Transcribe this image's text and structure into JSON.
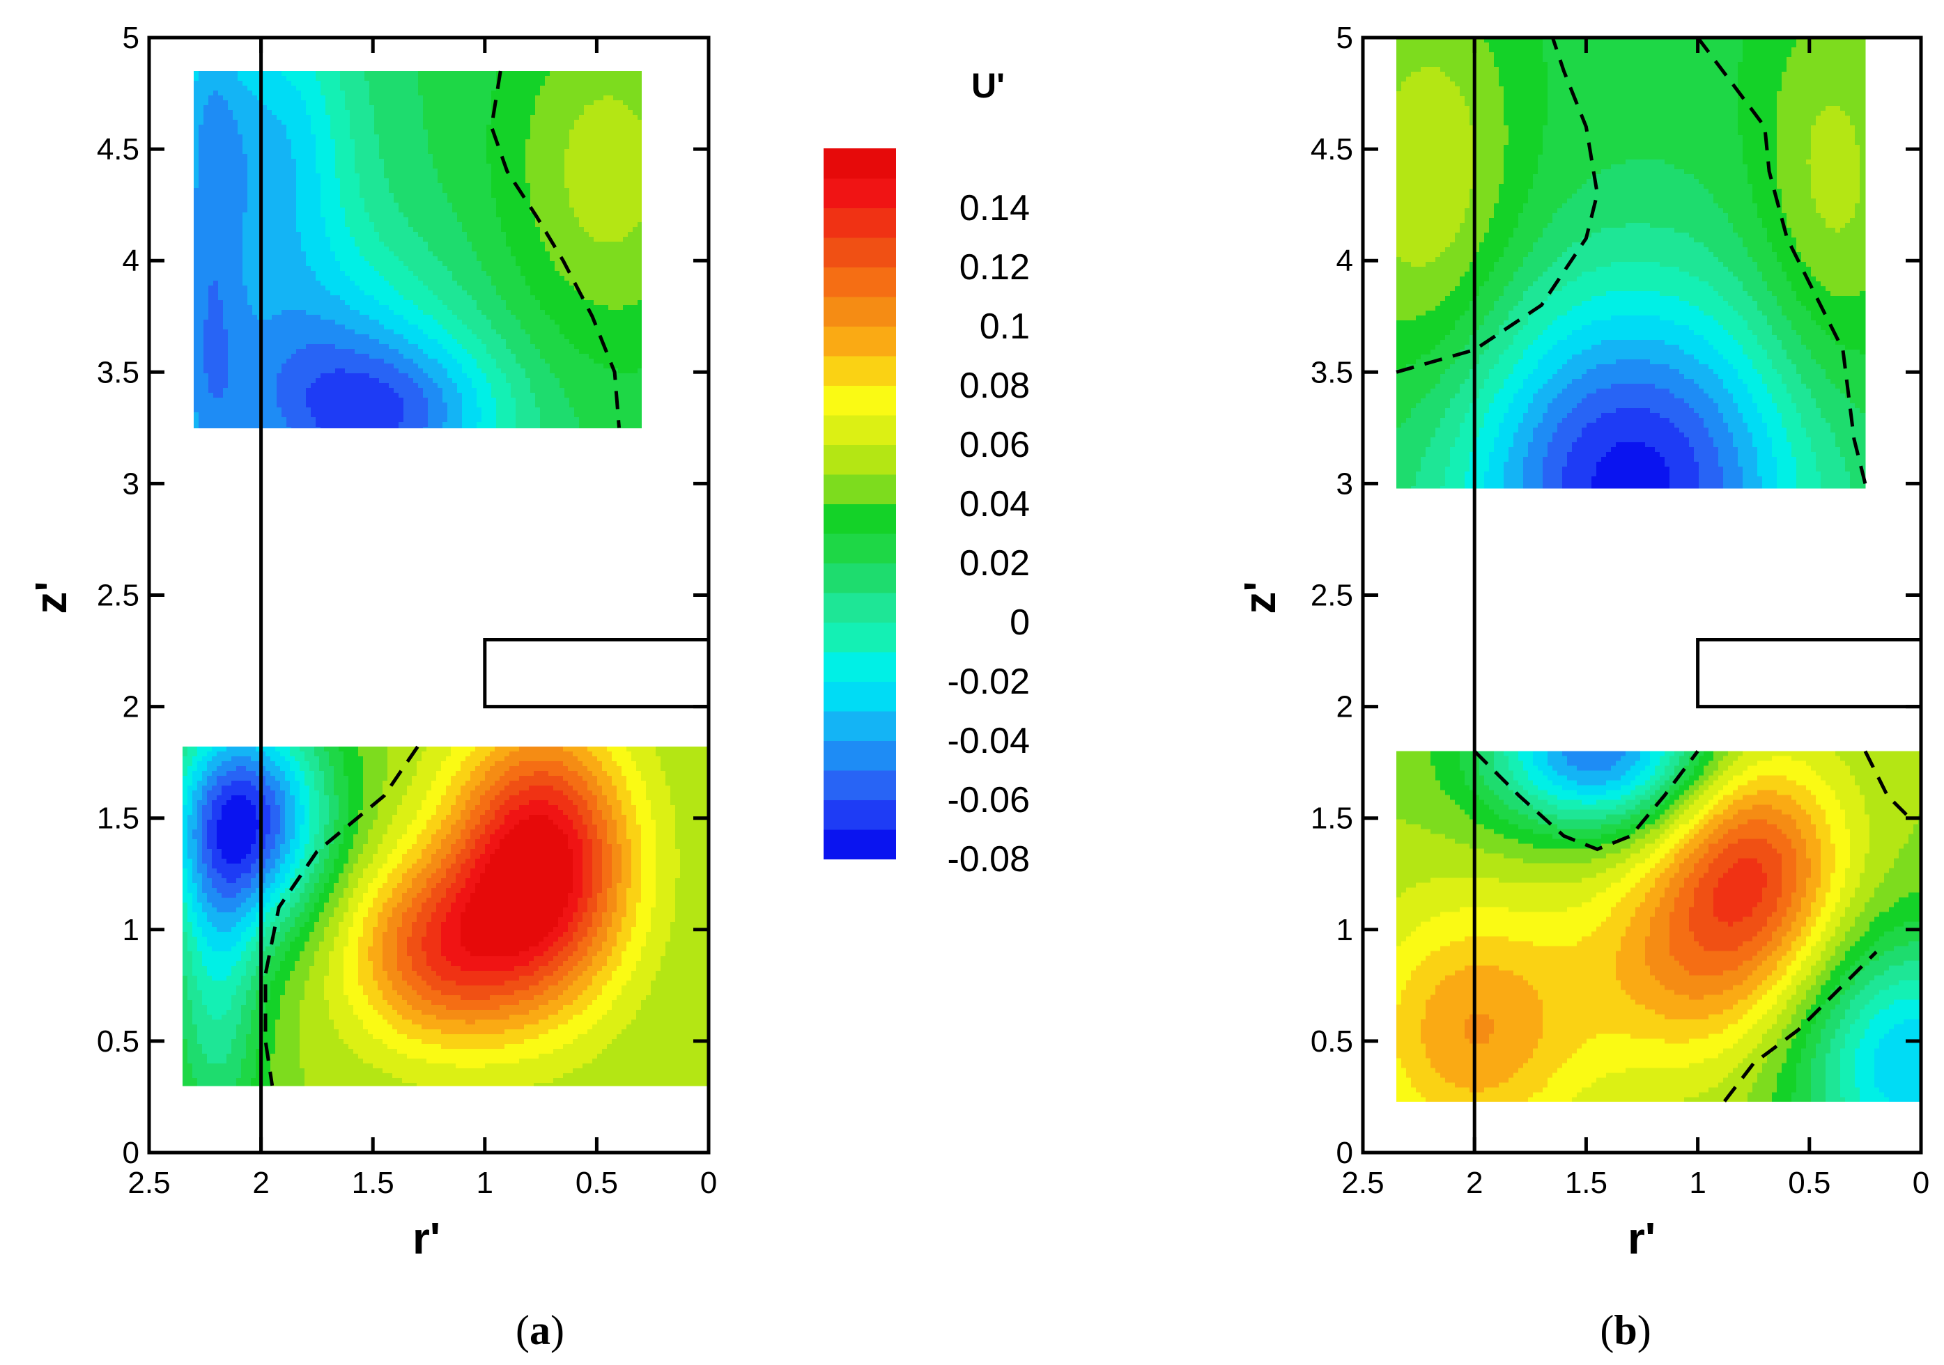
{
  "chart_data": [
    {
      "type": "contour",
      "panel": "a",
      "caption_open": "(",
      "caption_letter": "a",
      "caption_close": ")",
      "xlabel": "r'",
      "ylabel": "z'",
      "xlim": [
        2.5,
        0
      ],
      "ylim": [
        0,
        5
      ],
      "xticks": [
        "2.5",
        "2",
        "1.5",
        "1",
        "0.5",
        "0"
      ],
      "xtick_values": [
        2.5,
        2,
        1.5,
        1,
        0.5,
        0
      ],
      "yticks": [
        "0",
        "0.5",
        "1",
        "1.5",
        "2",
        "2.5",
        "3",
        "3.5",
        "4",
        "4.5",
        "5"
      ],
      "ytick_values": [
        0,
        0.5,
        1,
        1.5,
        2,
        2.5,
        3,
        3.5,
        4,
        4.5,
        5
      ],
      "reference_line_r": 2,
      "obstacle": {
        "r_min": 0,
        "r_max": 1,
        "z_min": 2,
        "z_max": 2.3
      },
      "regions": [
        {
          "name": "upper",
          "r_range": [
            0.3,
            2.3
          ],
          "z_range": [
            3.25,
            4.85
          ],
          "background": 0.02,
          "blobs": [
            {
              "r": 2.25,
              "z": 4.2,
              "sr": 0.12,
              "sz": 1.2,
              "amp": -0.04
            },
            {
              "r": 1.75,
              "z": 3.4,
              "sr": 0.45,
              "sz": 0.45,
              "amp": -0.06
            },
            {
              "r": 1.35,
              "z": 3.3,
              "sr": 0.35,
              "sz": 0.25,
              "amp": -0.04
            },
            {
              "r": 1.95,
              "z": 4.5,
              "sr": 0.25,
              "sz": 0.5,
              "amp": -0.05
            },
            {
              "r": 0.45,
              "z": 4.4,
              "sr": 0.35,
              "sz": 0.6,
              "amp": 0.035
            }
          ],
          "zero_contour": [
            [
              0.93,
              4.85
            ],
            [
              0.97,
              4.6
            ],
            [
              0.9,
              4.4
            ],
            [
              0.77,
              4.2
            ],
            [
              0.65,
              4.0
            ],
            [
              0.52,
              3.75
            ],
            [
              0.42,
              3.5
            ],
            [
              0.4,
              3.25
            ]
          ]
        },
        {
          "name": "lower",
          "r_range": [
            0,
            2.35
          ],
          "z_range": [
            0.3,
            1.82
          ],
          "background": 0.05,
          "blobs": [
            {
              "r": 0.75,
              "z": 1.3,
              "sr": 0.28,
              "sz": 0.42,
              "amp": 0.11
            },
            {
              "r": 1.2,
              "z": 0.9,
              "sr": 0.3,
              "sz": 0.3,
              "amp": 0.07
            },
            {
              "r": 2.05,
              "z": 1.5,
              "sr": 0.25,
              "sz": 0.35,
              "amp": -0.11
            },
            {
              "r": 2.2,
              "z": 0.8,
              "sr": 0.15,
              "sz": 0.6,
              "amp": -0.05
            }
          ],
          "zero_contour": [
            [
              1.3,
              1.82
            ],
            [
              1.45,
              1.6
            ],
            [
              1.75,
              1.35
            ],
            [
              1.92,
              1.1
            ],
            [
              1.98,
              0.8
            ],
            [
              1.98,
              0.5
            ],
            [
              1.95,
              0.3
            ]
          ]
        }
      ]
    },
    {
      "type": "contour",
      "panel": "b",
      "caption_open": "(",
      "caption_letter": "b",
      "caption_close": ")",
      "xlabel": "r'",
      "ylabel": "z'",
      "xlim": [
        2.5,
        0
      ],
      "ylim": [
        0,
        5
      ],
      "xticks": [
        "2.5",
        "2",
        "1.5",
        "1",
        "0.5",
        "0"
      ],
      "xtick_values": [
        2.5,
        2,
        1.5,
        1,
        0.5,
        0
      ],
      "yticks": [
        "0",
        "0.5",
        "1",
        "1.5",
        "2",
        "2.5",
        "3",
        "3.5",
        "4",
        "4.5",
        "5"
      ],
      "ytick_values": [
        0,
        0.5,
        1,
        1.5,
        2,
        2.5,
        3,
        3.5,
        4,
        4.5,
        5
      ],
      "reference_line_r": 2,
      "obstacle": {
        "r_min": 0,
        "r_max": 1,
        "z_min": 2,
        "z_max": 2.3
      },
      "regions": [
        {
          "name": "upper",
          "r_range": [
            0.25,
            2.35
          ],
          "z_range": [
            2.98,
            5.0
          ],
          "background": 0.025,
          "blobs": [
            {
              "r": 1.3,
              "z": 3.0,
              "sr": 0.55,
              "sz": 0.6,
              "amp": -0.1
            },
            {
              "r": 2.2,
              "z": 4.3,
              "sr": 0.3,
              "sz": 0.7,
              "amp": 0.035
            },
            {
              "r": 0.4,
              "z": 4.3,
              "sr": 0.25,
              "sz": 0.7,
              "amp": 0.03
            }
          ],
          "zero_contour_left": [
            [
              2.35,
              3.5
            ],
            [
              2.0,
              3.6
            ],
            [
              1.7,
              3.8
            ],
            [
              1.5,
              4.1
            ],
            [
              1.45,
              4.3
            ],
            [
              1.5,
              4.6
            ],
            [
              1.6,
              4.85
            ],
            [
              1.65,
              5.0
            ]
          ],
          "zero_contour_right": [
            [
              1.0,
              5.0
            ],
            [
              0.85,
              4.8
            ],
            [
              0.7,
              4.6
            ],
            [
              0.68,
              4.4
            ],
            [
              0.6,
              4.1
            ],
            [
              0.5,
              3.9
            ],
            [
              0.35,
              3.6
            ],
            [
              0.3,
              3.2
            ],
            [
              0.25,
              3.0
            ]
          ]
        },
        {
          "name": "lower",
          "r_range": [
            0,
            2.35
          ],
          "z_range": [
            0.23,
            1.8
          ],
          "background": 0.05,
          "blobs": [
            {
              "r": 0.75,
              "z": 1.3,
              "sr": 0.28,
              "sz": 0.35,
              "amp": 0.07
            },
            {
              "r": 1.05,
              "z": 0.85,
              "sr": 0.35,
              "sz": 0.35,
              "amp": 0.045
            },
            {
              "r": 2.0,
              "z": 0.55,
              "sr": 0.35,
              "sz": 0.4,
              "amp": 0.05
            },
            {
              "r": 1.45,
              "z": 1.8,
              "sr": 0.35,
              "sz": 0.25,
              "amp": -0.1
            },
            {
              "r": 0.05,
              "z": 0.4,
              "sr": 0.35,
              "sz": 0.4,
              "amp": -0.08
            }
          ],
          "zero_contour_top": [
            [
              2.0,
              1.8
            ],
            [
              1.8,
              1.6
            ],
            [
              1.6,
              1.42
            ],
            [
              1.45,
              1.36
            ],
            [
              1.3,
              1.42
            ],
            [
              1.15,
              1.6
            ],
            [
              1.0,
              1.8
            ]
          ],
          "zero_contour_right": [
            [
              0.88,
              0.23
            ],
            [
              0.75,
              0.4
            ],
            [
              0.55,
              0.55
            ],
            [
              0.35,
              0.75
            ],
            [
              0.2,
              0.9
            ]
          ],
          "zero_contour_top_right": [
            [
              0.25,
              1.8
            ],
            [
              0.15,
              1.6
            ],
            [
              0.05,
              1.5
            ]
          ]
        }
      ]
    }
  ],
  "colorbar": {
    "title": "U'",
    "min": -0.08,
    "max": 0.16,
    "step": 0.01,
    "labels": [
      "0.14",
      "0.12",
      "0.1",
      "0.08",
      "0.06",
      "0.04",
      "0.02",
      "0",
      "-0.02",
      "-0.04",
      "-0.06",
      "-0.08"
    ],
    "label_values": [
      0.14,
      0.12,
      0.1,
      0.08,
      0.06,
      0.04,
      0.02,
      0,
      -0.02,
      -0.04,
      -0.06,
      -0.08
    ],
    "colors": [
      "#0a14f0",
      "#1e3cf5",
      "#2864f5",
      "#1e8cf5",
      "#14b4f5",
      "#00dcf5",
      "#00f0e6",
      "#14f0b4",
      "#1ee696",
      "#1edc6e",
      "#1ed746",
      "#14d228",
      "#7ddc1e",
      "#b4e614",
      "#dcf014",
      "#fafa14",
      "#fad214",
      "#faaa14",
      "#f58c14",
      "#f56e14",
      "#f05014",
      "#f03214",
      "#f01414",
      "#e60a0a"
    ]
  }
}
